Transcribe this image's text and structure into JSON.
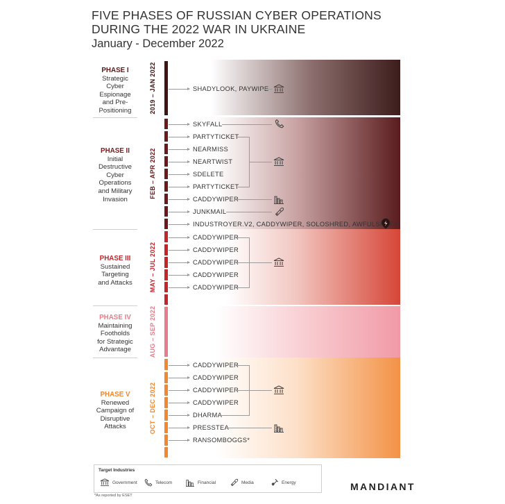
{
  "title_line1": "FIVE PHASES OF RUSSIAN CYBER OPERATIONS",
  "title_line2": "DURING THE 2022 WAR IN UKRAINE",
  "subtitle": "January - December 2022",
  "colors": {
    "phase1": "#3d1515",
    "phase2": "#6b1a1c",
    "phase3": "#c4242c",
    "phase4": "#e87d8a",
    "phase5": "#f2872f"
  },
  "phases": [
    {
      "name": "PHASE I",
      "desc1": "Strategic",
      "desc2": "Cyber",
      "desc3": "Espionage",
      "desc4": "and Pre-",
      "desc5": "Positioning",
      "dates": "2019 – JAN 2022"
    },
    {
      "name": "PHASE II",
      "desc1": "Initial",
      "desc2": "Destructive",
      "desc3": "Cyber",
      "desc4": "Operations",
      "desc5": "and Military",
      "desc6": "Invasion",
      "dates": "FEB – APR 2022"
    },
    {
      "name": "PHASE III",
      "desc1": "Sustained",
      "desc2": "Targeting",
      "desc3": "and Attacks",
      "dates": "MAY – JUL 2022"
    },
    {
      "name": "PHASE IV",
      "desc1": "Maintaining",
      "desc2": "Footholds",
      "desc3": "for Strategic",
      "desc4": "Advantage",
      "dates": "AUG – SEP 2022"
    },
    {
      "name": "PHASE V",
      "desc1": "Renewed",
      "desc2": "Campaign of",
      "desc3": "Disruptive",
      "desc4": "Attacks",
      "dates": "OCT – DEC 2022"
    }
  ],
  "operations": {
    "p1": [
      "SHADYLOOK, PAYWIPE"
    ],
    "p2": [
      "SKYFALL",
      "PARTYTICKET",
      "NEARMISS",
      "NEARTWIST",
      "SDELETE",
      "PARTYTICKET",
      "CADDYWIPER",
      "JUNKMAIL",
      "INDUSTROYER.V2, CADDYWIPER, SOLOSHRED, AWFULSHRED"
    ],
    "p3": [
      "CADDYWIPER",
      "CADDYWIPER",
      "CADDYWIPER",
      "CADDYWIPER",
      "CADDYWIPER"
    ],
    "p5": [
      "CADDYWIPER",
      "CADDYWIPER",
      "CADDYWIPER",
      "CADDYWIPER",
      "DHARMA",
      "PRESSTEA",
      "RANSOMBOGGS*"
    ]
  },
  "legend": {
    "title": "Target Industries",
    "government": "Government",
    "telecom": "Telecom",
    "financial": "Financial",
    "media": "Media",
    "energy": "Energy"
  },
  "footnote": "*As reported by ESET",
  "brand": "MANDIANT"
}
